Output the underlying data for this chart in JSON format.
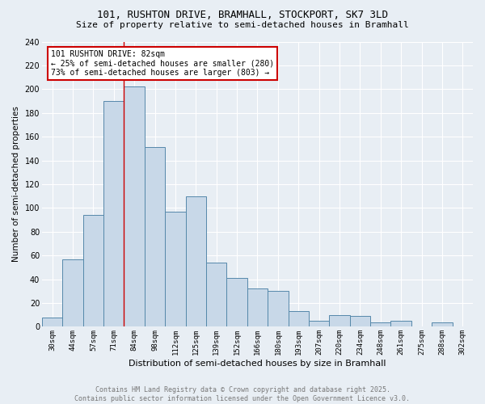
{
  "title": "101, RUSHTON DRIVE, BRAMHALL, STOCKPORT, SK7 3LD",
  "subtitle": "Size of property relative to semi-detached houses in Bramhall",
  "xlabel": "Distribution of semi-detached houses by size in Bramhall",
  "ylabel": "Number of semi-detached properties",
  "footer_line1": "Contains HM Land Registry data © Crown copyright and database right 2025.",
  "footer_line2": "Contains public sector information licensed under the Open Government Licence v3.0.",
  "bar_labels": [
    "30sqm",
    "44sqm",
    "57sqm",
    "71sqm",
    "84sqm",
    "98sqm",
    "112sqm",
    "125sqm",
    "139sqm",
    "152sqm",
    "166sqm",
    "180sqm",
    "193sqm",
    "207sqm",
    "220sqm",
    "234sqm",
    "248sqm",
    "261sqm",
    "275sqm",
    "288sqm",
    "302sqm"
  ],
  "bar_values": [
    8,
    57,
    94,
    190,
    202,
    151,
    97,
    110,
    54,
    41,
    32,
    30,
    13,
    5,
    10,
    9,
    4,
    5,
    0,
    4,
    0
  ],
  "bar_color": "#c8d8e8",
  "bar_edge_color": "#5588aa",
  "bg_color": "#e8eef4",
  "grid_color": "#ffffff",
  "annotation_line1": "101 RUSHTON DRIVE: 82sqm",
  "annotation_line2": "← 25% of semi-detached houses are smaller (280)",
  "annotation_line3": "73% of semi-detached houses are larger (803) →",
  "annotation_box_color": "#ffffff",
  "annotation_border_color": "#cc0000",
  "property_line_color": "#cc0000",
  "property_line_index": 4,
  "ylim": [
    0,
    240
  ],
  "yticks": [
    0,
    20,
    40,
    60,
    80,
    100,
    120,
    140,
    160,
    180,
    200,
    220,
    240
  ],
  "title_fontsize": 9,
  "subtitle_fontsize": 8,
  "ylabel_fontsize": 7.5,
  "xlabel_fontsize": 8,
  "ytick_fontsize": 7,
  "xtick_fontsize": 6.5,
  "footer_fontsize": 6,
  "annotation_fontsize": 7
}
